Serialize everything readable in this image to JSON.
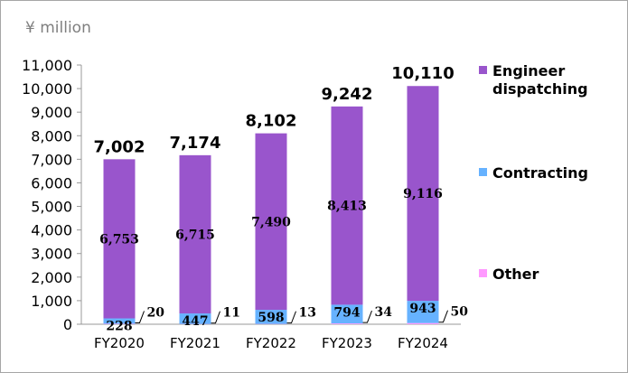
{
  "chart_data": {
    "type": "bar",
    "stacked": true,
    "unit_label": "¥ million",
    "categories": [
      "FY2020",
      "FY2021",
      "FY2022",
      "FY2023",
      "FY2024"
    ],
    "series": [
      {
        "name": "Other",
        "values": [
          20,
          11,
          13,
          34,
          50
        ],
        "color": "#ff99ff"
      },
      {
        "name": "Contracting",
        "values": [
          228,
          447,
          598,
          794,
          943
        ],
        "color": "#66b2ff"
      },
      {
        "name": "Engineer dispatching",
        "values": [
          6753,
          6715,
          7490,
          8413,
          9116
        ],
        "color": "#9955cc"
      }
    ],
    "totals": [
      7002,
      7174,
      8102,
      9242,
      10110
    ],
    "ylim": [
      0,
      11000
    ],
    "yticks": [
      0,
      1000,
      2000,
      3000,
      4000,
      5000,
      6000,
      7000,
      8000,
      9000,
      10000,
      11000
    ],
    "grid": false,
    "legend_position": "right",
    "legend": [
      {
        "lines": [
          "Engineer",
          "dispatching"
        ],
        "color": "#9955cc"
      },
      {
        "lines": [
          "Contracting"
        ],
        "color": "#66b2ff"
      },
      {
        "lines": [
          "Other"
        ],
        "color": "#ff99ff"
      }
    ]
  }
}
